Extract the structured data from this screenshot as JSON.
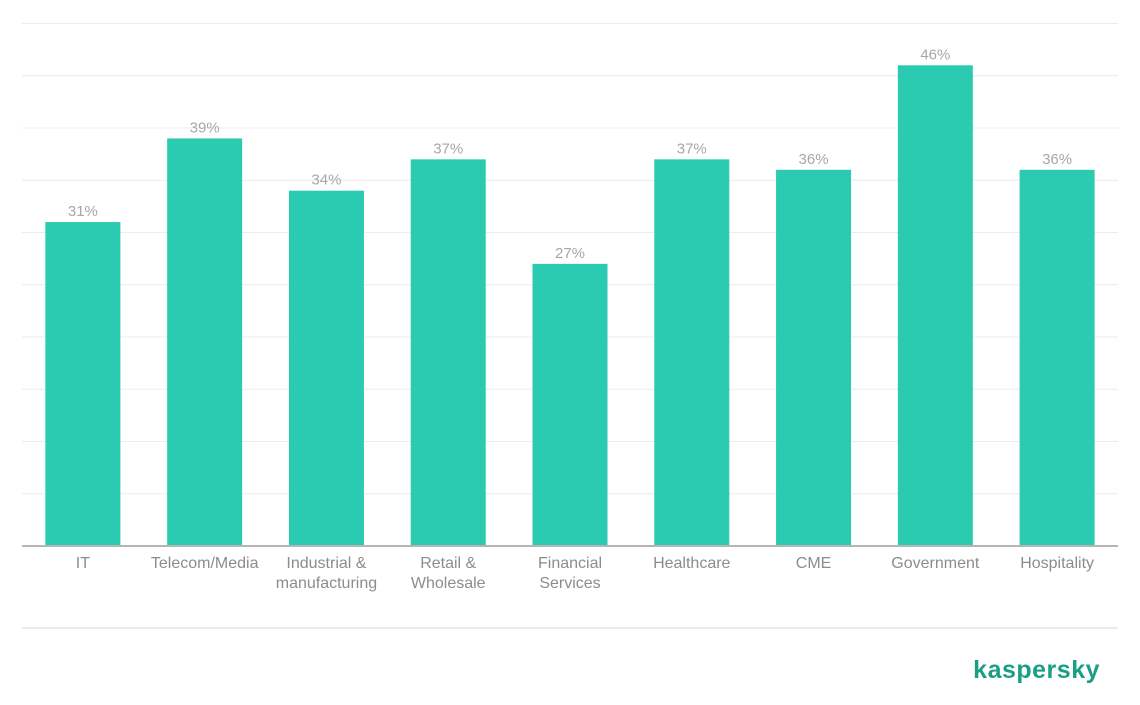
{
  "colors": {
    "bar": "#2acbb0",
    "grid": "#ececec",
    "axis": "#b5b5b5",
    "brand": "#1a9f86"
  },
  "brand": {
    "logo_text": "kaspersky"
  },
  "chart_data": {
    "type": "bar",
    "categories": [
      [
        "IT"
      ],
      [
        "Telecom/Media"
      ],
      [
        "Industrial &",
        "manufacturing"
      ],
      [
        "Retail &",
        "Wholesale"
      ],
      [
        "Financial",
        "Services"
      ],
      [
        "Healthcare"
      ],
      [
        "CME"
      ],
      [
        "Government"
      ],
      [
        "Hospitality"
      ]
    ],
    "values": [
      31,
      39,
      34,
      37,
      27,
      37,
      36,
      46,
      36
    ],
    "value_labels": [
      "31%",
      "39%",
      "34%",
      "37%",
      "27%",
      "37%",
      "36%",
      "46%",
      "36%"
    ],
    "title": "",
    "xlabel": "",
    "ylabel": "",
    "ylim": [
      0,
      50
    ],
    "grid": true,
    "legend": "none"
  }
}
